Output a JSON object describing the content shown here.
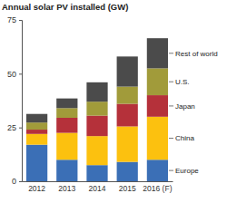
{
  "chart_data": {
    "type": "bar",
    "title": "Annual solar PV installed (GW)",
    "categories": [
      "2012",
      "2013",
      "2014",
      "2015",
      "2016 (F)"
    ],
    "series": [
      {
        "name": "Europe",
        "color": "#3b6fb6",
        "values": [
          17,
          10,
          7.5,
          9,
          10
        ]
      },
      {
        "name": "China",
        "color": "#fcc10f",
        "values": [
          5,
          12.5,
          13.5,
          16.5,
          20
        ]
      },
      {
        "name": "Japan",
        "color": "#b5313a",
        "values": [
          2,
          7,
          9.5,
          10.5,
          10
        ]
      },
      {
        "name": "U.S.",
        "color": "#a19b3a",
        "values": [
          3.3,
          4.5,
          6.5,
          8,
          12.5
        ]
      },
      {
        "name": "Rest of world",
        "color": "#4b4b4b",
        "values": [
          4,
          4.5,
          9,
          14,
          14
        ]
      }
    ],
    "stacked": true,
    "legend": "right",
    "ylim": [
      0,
      75
    ],
    "yticks": [
      0,
      25,
      50,
      75
    ]
  }
}
